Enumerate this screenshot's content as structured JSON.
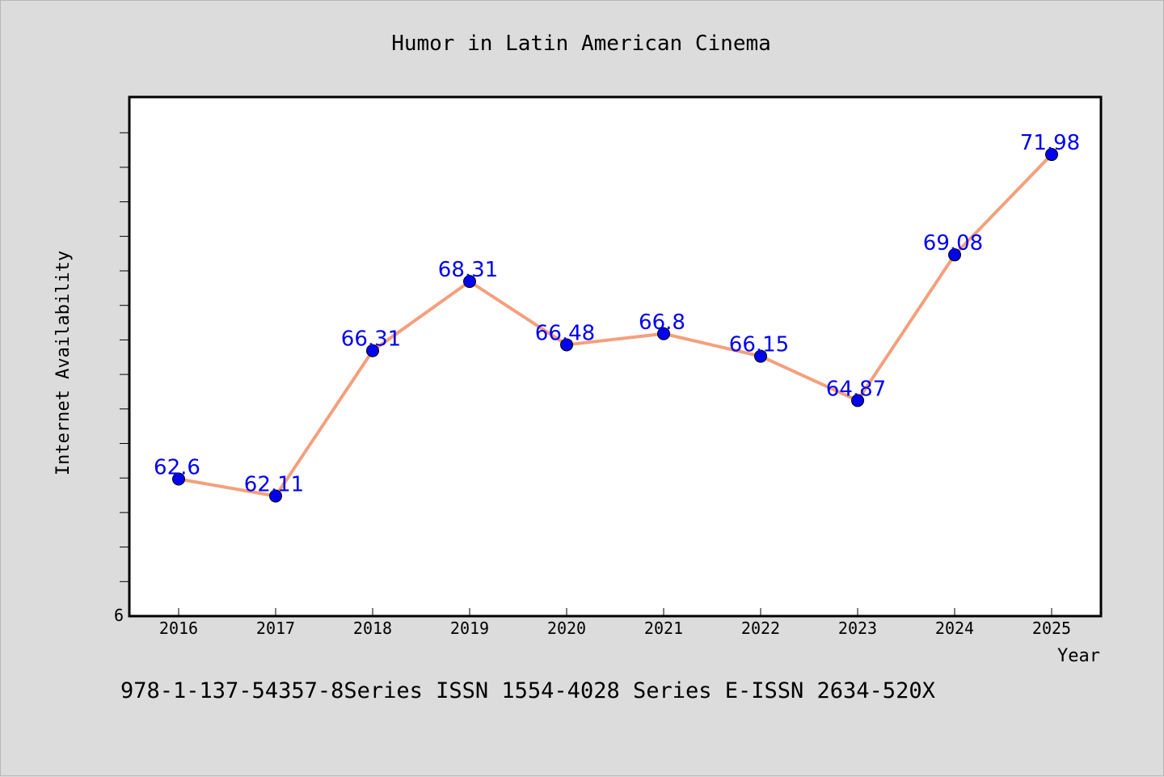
{
  "chart_data": {
    "type": "line",
    "title": "Humor in Latin American Cinema",
    "xlabel": "Year",
    "ylabel": "Internet Availability",
    "x": [
      "2016",
      "2017",
      "2018",
      "2019",
      "2020",
      "2021",
      "2022",
      "2023",
      "2024",
      "2025"
    ],
    "series": [
      {
        "values": [
          62.6,
          62.11,
          66.31,
          68.31,
          66.48,
          66.8,
          66.15,
          64.87,
          69.08,
          71.98
        ],
        "data_labels": [
          "62.6",
          "62.11",
          "66.31",
          "68.31",
          "66.48",
          "66.8",
          "66.15",
          "64.87",
          "69.08",
          "71.98"
        ],
        "line_color": "#f4a07c",
        "marker_color": "#0000ee",
        "label_color": "#0000ee"
      }
    ],
    "y_tick_label": "6",
    "ylim": [
      58.64,
      73.64
    ],
    "grid": false,
    "legend": "none"
  },
  "footer": {
    "text": "978-1-137-54357-8Series ISSN 1554-4028 Series E-ISSN 2634-520X"
  }
}
